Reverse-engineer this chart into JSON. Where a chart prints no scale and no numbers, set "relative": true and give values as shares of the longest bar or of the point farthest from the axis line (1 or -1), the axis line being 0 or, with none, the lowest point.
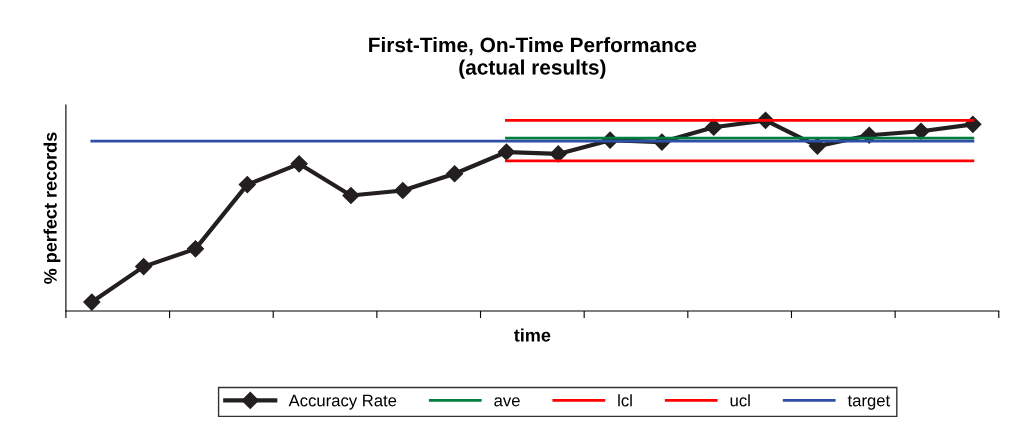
{
  "chart_data": {
    "type": "line",
    "title": "First-Time, On-Time Performance\n(actual results)",
    "xlabel": "time",
    "ylabel": "% perfect records",
    "relative": true,
    "legend": "bottom",
    "grid": false,
    "categories": [
      null,
      null,
      null,
      null,
      null,
      null,
      null,
      null,
      null,
      null,
      null,
      null,
      null,
      null,
      null,
      null,
      null,
      null
    ],
    "series": [
      {
        "name": "Accuracy Rate",
        "color": "#231f20",
        "marker": "diamond",
        "values": [
          0.047,
          0.233,
          0.326,
          0.663,
          0.772,
          0.606,
          0.632,
          0.72,
          0.834,
          0.824,
          0.896,
          0.886,
          0.964,
          1.0,
          0.865,
          0.922,
          0.943,
          0.979
        ]
      },
      {
        "name": "ave",
        "color": "#00803c",
        "values": [
          null,
          null,
          null,
          null,
          null,
          null,
          null,
          null,
          0.907,
          0.907,
          0.907,
          0.907,
          0.907,
          0.907,
          0.907,
          0.907,
          0.907,
          0.907
        ]
      },
      {
        "name": "lcl",
        "color": "#ff0000",
        "values": [
          null,
          null,
          null,
          null,
          null,
          null,
          null,
          null,
          0.788,
          0.788,
          0.788,
          0.788,
          0.788,
          0.788,
          0.788,
          0.788,
          0.788,
          0.788
        ]
      },
      {
        "name": "ucl",
        "color": "#ff0000",
        "values": [
          null,
          null,
          null,
          null,
          null,
          null,
          null,
          null,
          1.0,
          1.0,
          1.0,
          1.0,
          1.0,
          1.0,
          1.0,
          1.0,
          1.0,
          1.0
        ]
      },
      {
        "name": "target",
        "color": "#2e4ea8",
        "values": [
          0.891,
          0.891,
          0.891,
          0.891,
          0.891,
          0.891,
          0.891,
          0.891,
          0.891,
          0.891,
          0.891,
          0.891,
          0.891,
          0.891,
          0.891,
          0.891,
          0.891,
          0.891
        ]
      }
    ]
  }
}
